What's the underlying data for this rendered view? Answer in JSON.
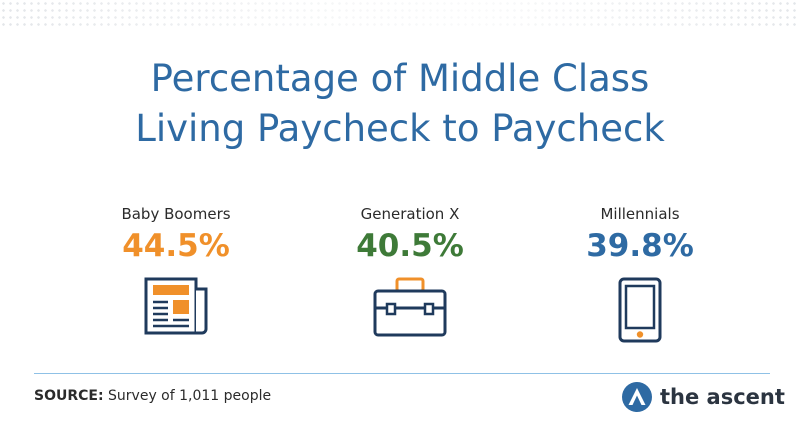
{
  "title": {
    "line1": "Percentage of Middle Class",
    "line2": "Living Paycheck to Paycheck"
  },
  "stats": [
    {
      "label": "Baby Boomers",
      "value": "44.5%",
      "icon": "newspaper-icon",
      "color": "#f0902a"
    },
    {
      "label": "Generation X",
      "value": "40.5%",
      "icon": "briefcase-icon",
      "color": "#3e7a38"
    },
    {
      "label": "Millennials",
      "value": "39.8%",
      "icon": "tablet-icon",
      "color": "#2e6aa3"
    }
  ],
  "footer": {
    "source_label": "SOURCE:",
    "source_text": " Survey of 1,011 people",
    "brand": "the ascent",
    "brand_icon": "the-ascent-logo-icon"
  },
  "colors": {
    "title": "#2e6aa3",
    "outline": "#1f3a5c",
    "accent_orange": "#f0902a",
    "divider": "#8fc1e6"
  }
}
